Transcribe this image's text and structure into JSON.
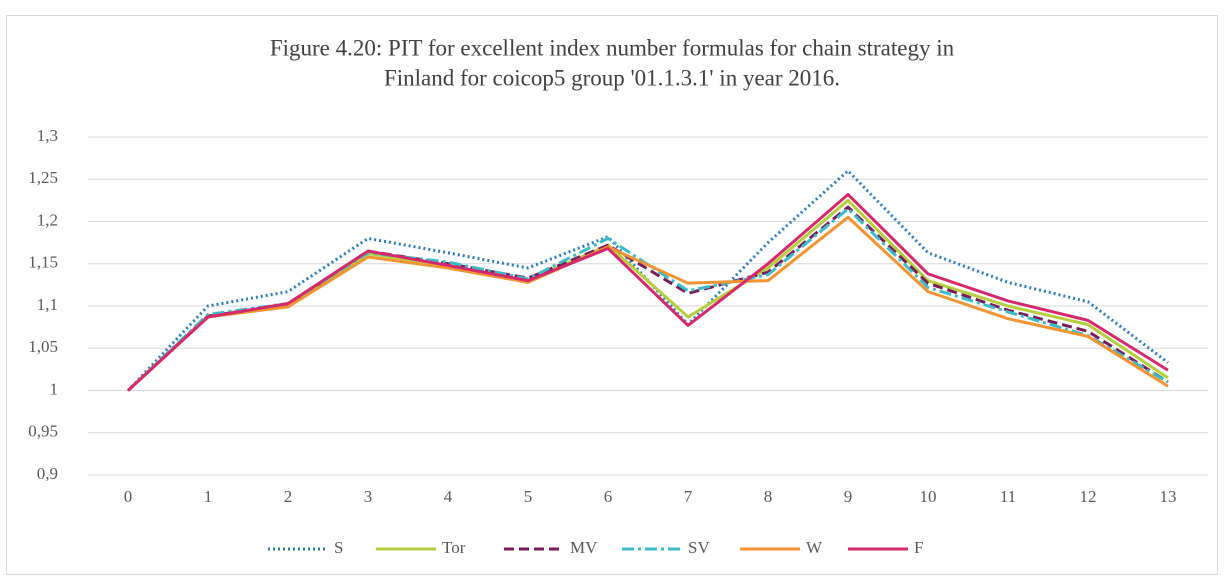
{
  "chart_data": {
    "type": "line",
    "title": [
      "Figure 4.20: PIT for excellent index number formulas for chain strategy in",
      "Finland for coicop5 group '01.1.3.1' in year 2016."
    ],
    "categories": [
      "0",
      "1",
      "2",
      "3",
      "4",
      "5",
      "6",
      "7",
      "8",
      "9",
      "10",
      "11",
      "12",
      "13"
    ],
    "series": [
      {
        "name": "S",
        "color": "#2b7bb9",
        "dash": "dotted",
        "values": [
          1,
          1.1,
          1.117,
          1.18,
          1.163,
          1.145,
          1.182,
          1.078,
          1.175,
          1.26,
          1.163,
          1.128,
          1.105,
          1.033
        ]
      },
      {
        "name": "Tor",
        "color": "#b4cf3a",
        "dash": "solid",
        "values": [
          1,
          1.088,
          1.102,
          1.162,
          1.148,
          1.13,
          1.172,
          1.087,
          1.145,
          1.225,
          1.13,
          1.1,
          1.078,
          1.015
        ]
      },
      {
        "name": "MV",
        "color": "#7a1c5c",
        "dash": "dashed",
        "values": [
          1,
          1.088,
          1.102,
          1.165,
          1.15,
          1.133,
          1.172,
          1.115,
          1.14,
          1.217,
          1.127,
          1.095,
          1.07,
          1.01
        ]
      },
      {
        "name": "SV",
        "color": "#3bbcc4",
        "dash": "dashdot",
        "values": [
          1,
          1.09,
          1.103,
          1.163,
          1.152,
          1.132,
          1.18,
          1.118,
          1.137,
          1.215,
          1.122,
          1.093,
          1.065,
          1.01
        ]
      },
      {
        "name": "W",
        "color": "#f39432",
        "dash": "solid",
        "values": [
          1,
          1.087,
          1.099,
          1.158,
          1.145,
          1.128,
          1.17,
          1.127,
          1.13,
          1.205,
          1.117,
          1.085,
          1.064,
          1.005
        ]
      },
      {
        "name": "F",
        "color": "#d42a6d",
        "dash": "solid",
        "values": [
          1,
          1.087,
          1.103,
          1.165,
          1.148,
          1.13,
          1.168,
          1.077,
          1.15,
          1.232,
          1.138,
          1.106,
          1.083,
          1.024
        ]
      }
    ],
    "ylim": [
      0.9,
      1.3
    ],
    "yticks": [
      {
        "value": 0.9,
        "label": "0,9"
      },
      {
        "value": 0.95,
        "label": "0,95"
      },
      1,
      {
        "value": 1.05,
        "label": "1,05"
      },
      {
        "value": 1.1,
        "label": "1,1"
      },
      {
        "value": 1.15,
        "label": "1,15"
      },
      {
        "value": 1.2,
        "label": "1,2"
      },
      {
        "value": 1.25,
        "label": "1,25"
      },
      {
        "value": 1.3,
        "label": "1,3"
      }
    ],
    "grid": true,
    "legend": "bottom"
  }
}
